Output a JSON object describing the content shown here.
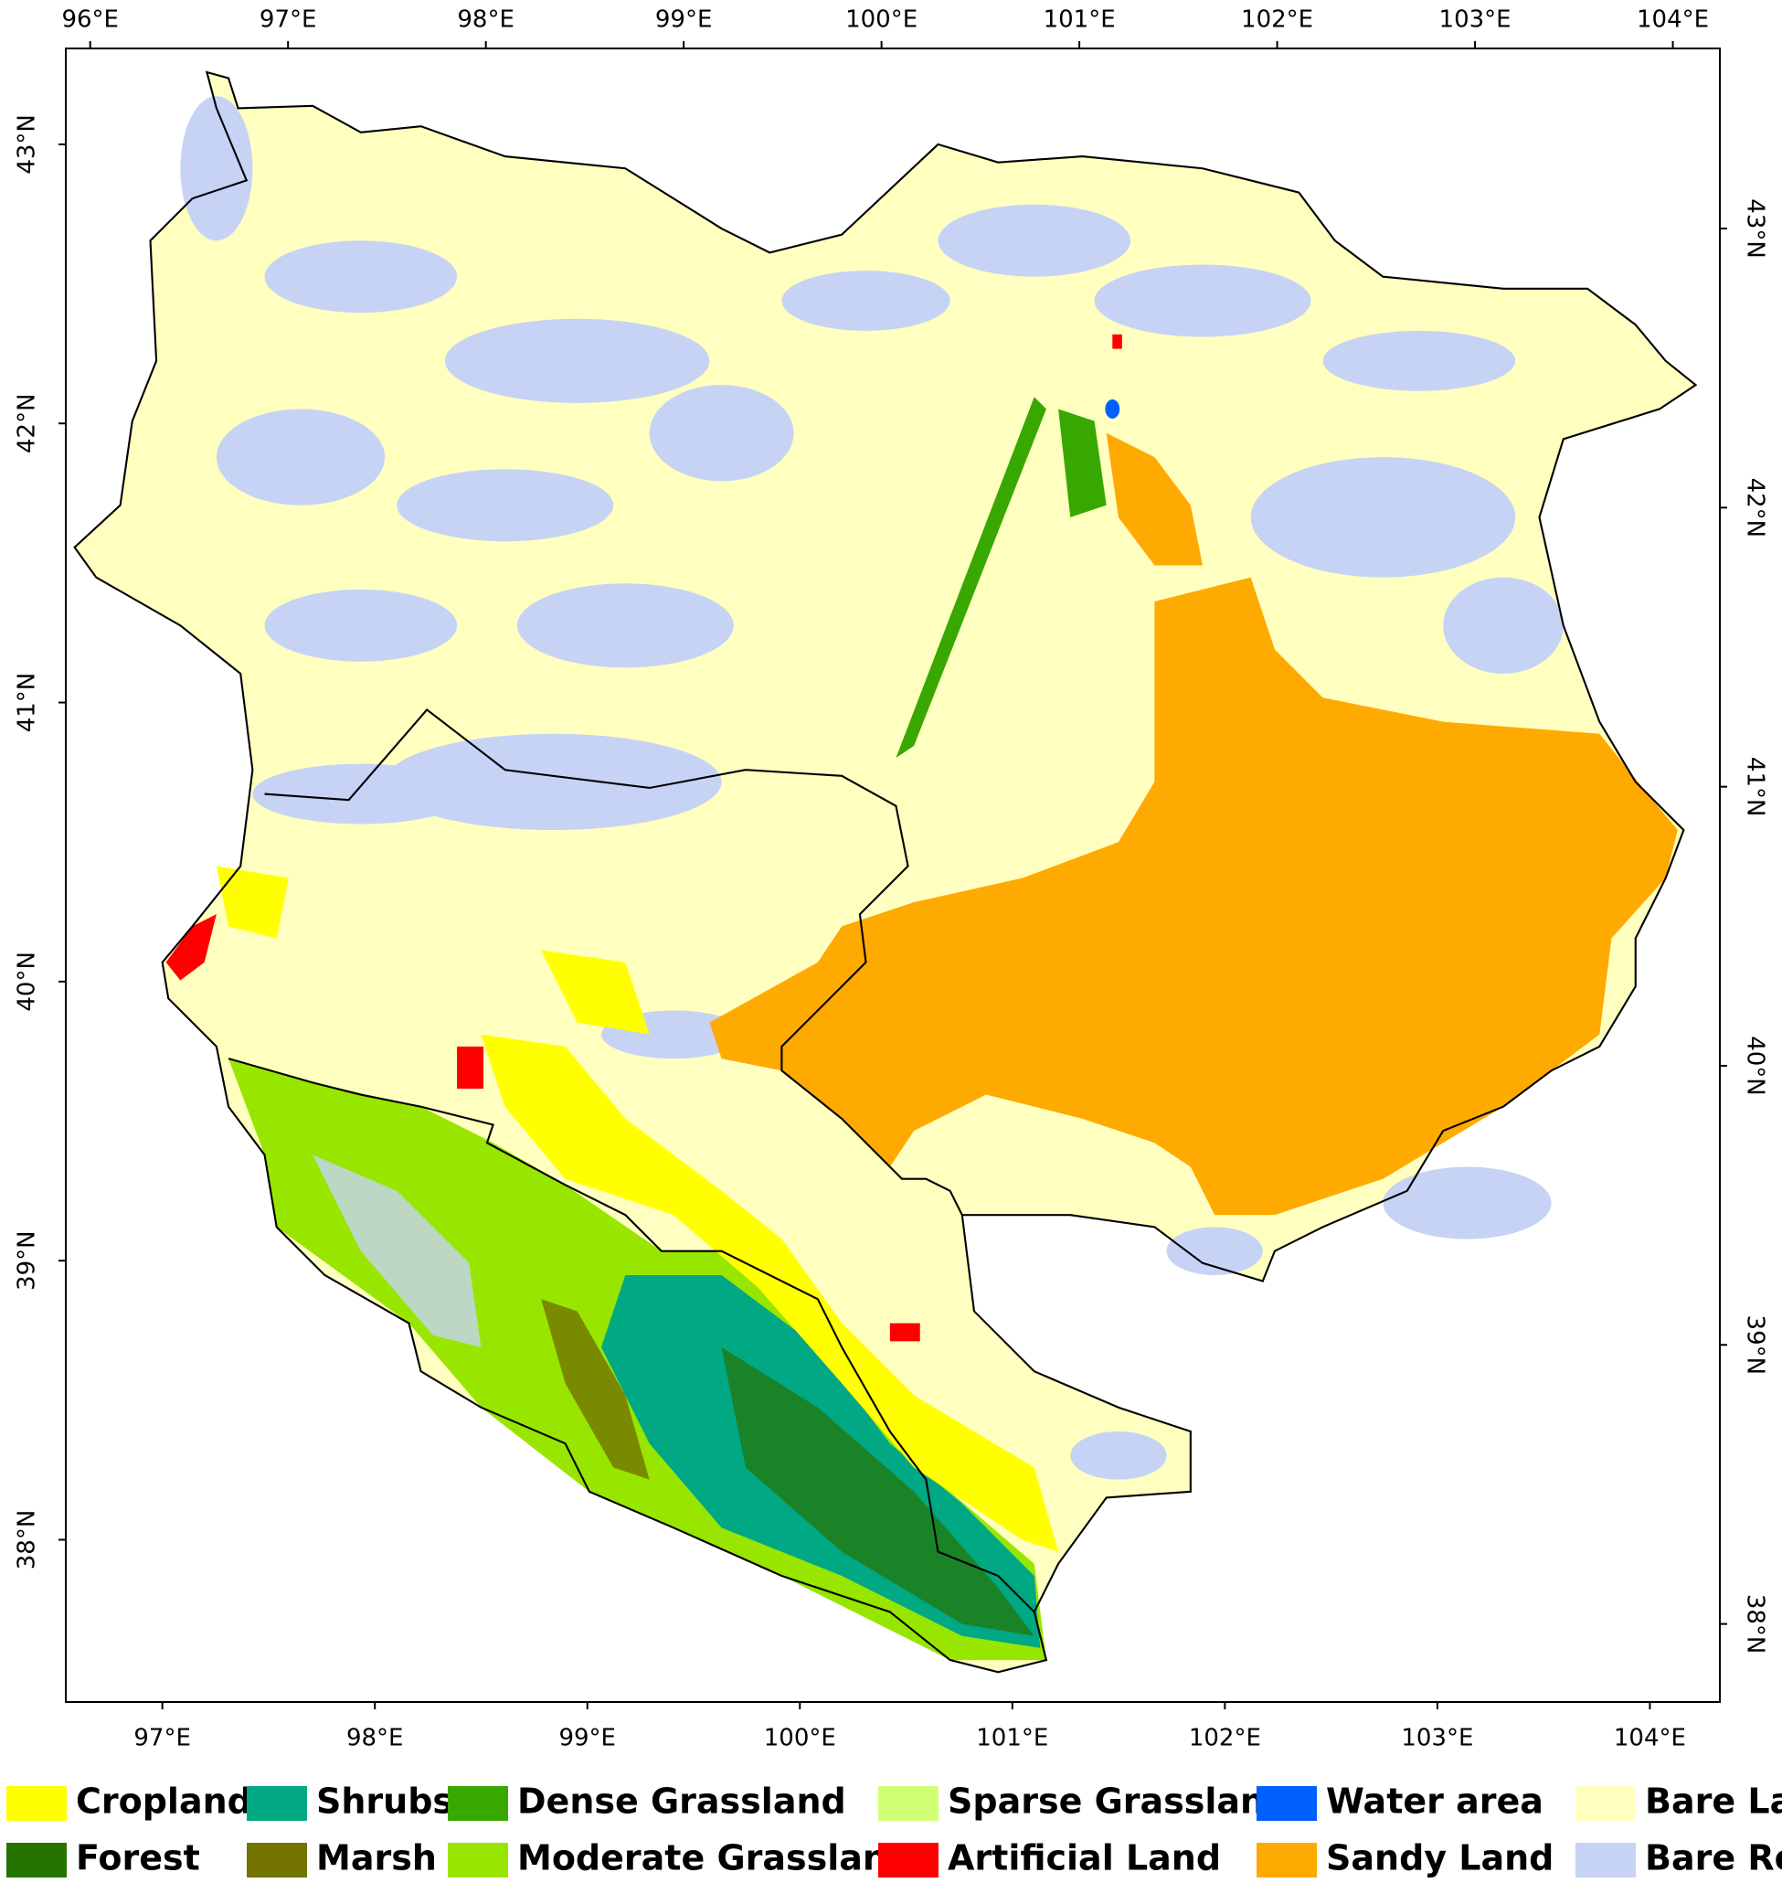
{
  "map": {
    "ticks": {
      "top": [
        {
          "value": 96,
          "label": "96°E"
        },
        {
          "value": 97,
          "label": "97°E"
        },
        {
          "value": 98,
          "label": "98°E"
        },
        {
          "value": 99,
          "label": "99°E"
        },
        {
          "value": 100,
          "label": "100°E"
        },
        {
          "value": 101,
          "label": "101°E"
        },
        {
          "value": 102,
          "label": "102°E"
        },
        {
          "value": 103,
          "label": "103°E"
        },
        {
          "value": 104,
          "label": "104°E"
        }
      ],
      "bottom": [
        {
          "value": 97,
          "label": "97°E"
        },
        {
          "value": 98,
          "label": "98°E"
        },
        {
          "value": 99,
          "label": "99°E"
        },
        {
          "value": 100,
          "label": "100°E"
        },
        {
          "value": 101,
          "label": "101°E"
        },
        {
          "value": 102,
          "label": "102°E"
        },
        {
          "value": 103,
          "label": "103°E"
        },
        {
          "value": 104,
          "label": "104°E"
        }
      ],
      "left": [
        {
          "value": 43,
          "label": "43°N"
        },
        {
          "value": 42,
          "label": "42°N"
        },
        {
          "value": 41,
          "label": "41°N"
        },
        {
          "value": 40,
          "label": "40°N"
        },
        {
          "value": 39,
          "label": "39°N"
        },
        {
          "value": 38,
          "label": "38°N"
        }
      ],
      "right": [
        {
          "value": 43,
          "label": "43°N"
        },
        {
          "value": 42,
          "label": "42°N"
        },
        {
          "value": 41,
          "label": "41°N"
        },
        {
          "value": 40,
          "label": "40°N"
        },
        {
          "value": 39,
          "label": "39°N"
        },
        {
          "value": 38,
          "label": "38°N"
        }
      ]
    },
    "legend": [
      {
        "label": "Cropland",
        "color": "#ffff00"
      },
      {
        "label": "Shrubs",
        "color": "#00a884"
      },
      {
        "label": "Dense Grassland",
        "color": "#38a800"
      },
      {
        "label": "Sparse Grassland",
        "color": "#d1ff73"
      },
      {
        "label": "Water area",
        "color": "#0060ff"
      },
      {
        "label": "Bare Land",
        "color": "#ffffc0"
      },
      {
        "label": "Forest",
        "color": "#267300"
      },
      {
        "label": "Marsh",
        "color": "#737300"
      },
      {
        "label": "Moderate Grassland",
        "color": "#98e600"
      },
      {
        "label": "Artificial Land",
        "color": "#ff0000"
      },
      {
        "label": "Sandy Land",
        "color": "#ffaa00"
      },
      {
        "label": "Bare Rock",
        "color": "#c6d3f5"
      }
    ]
  }
}
